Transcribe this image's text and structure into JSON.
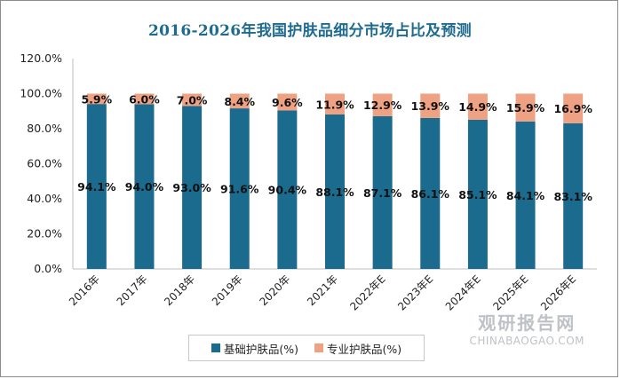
{
  "chart_data": {
    "type": "bar",
    "stacked": true,
    "title": "2016-2026年我国护肤品细分市场占比及预测",
    "categories": [
      "2016年",
      "2017年",
      "2018年",
      "2019年",
      "2020年",
      "2021年",
      "2022年E",
      "2023年E",
      "2024年E",
      "2025年E",
      "2026年E"
    ],
    "series": [
      {
        "name": "基础护肤品(%)",
        "color": "#1a6b8e",
        "values": [
          94.1,
          94.0,
          93.0,
          91.6,
          90.4,
          88.1,
          87.1,
          86.1,
          85.1,
          84.1,
          83.1
        ],
        "labels": [
          "94.1%",
          "94.0%",
          "93.0%",
          "91.6%",
          "90.4%",
          "88.1%",
          "87.1%",
          "86.1%",
          "85.1%",
          "84.1%",
          "83.1%"
        ]
      },
      {
        "name": "专业护肤品(%)",
        "color": "#eea283",
        "values": [
          5.9,
          6.0,
          7.0,
          8.4,
          9.6,
          11.9,
          12.9,
          13.9,
          14.9,
          15.9,
          16.9
        ],
        "labels": [
          "5.9%",
          "6.0%",
          "7.0%",
          "8.4%",
          "9.6%",
          "11.9%",
          "12.9%",
          "13.9%",
          "14.9%",
          "15.9%",
          "16.9%"
        ]
      }
    ],
    "ylim": [
      0,
      120
    ],
    "yticks": [
      "0.0%",
      "20.0%",
      "40.0%",
      "60.0%",
      "80.0%",
      "100.0%",
      "120.0%"
    ],
    "grid": false,
    "legend": "bottom"
  },
  "watermark": {
    "cn": "观研报告网",
    "en": "CHINABAOGAO.COM"
  }
}
